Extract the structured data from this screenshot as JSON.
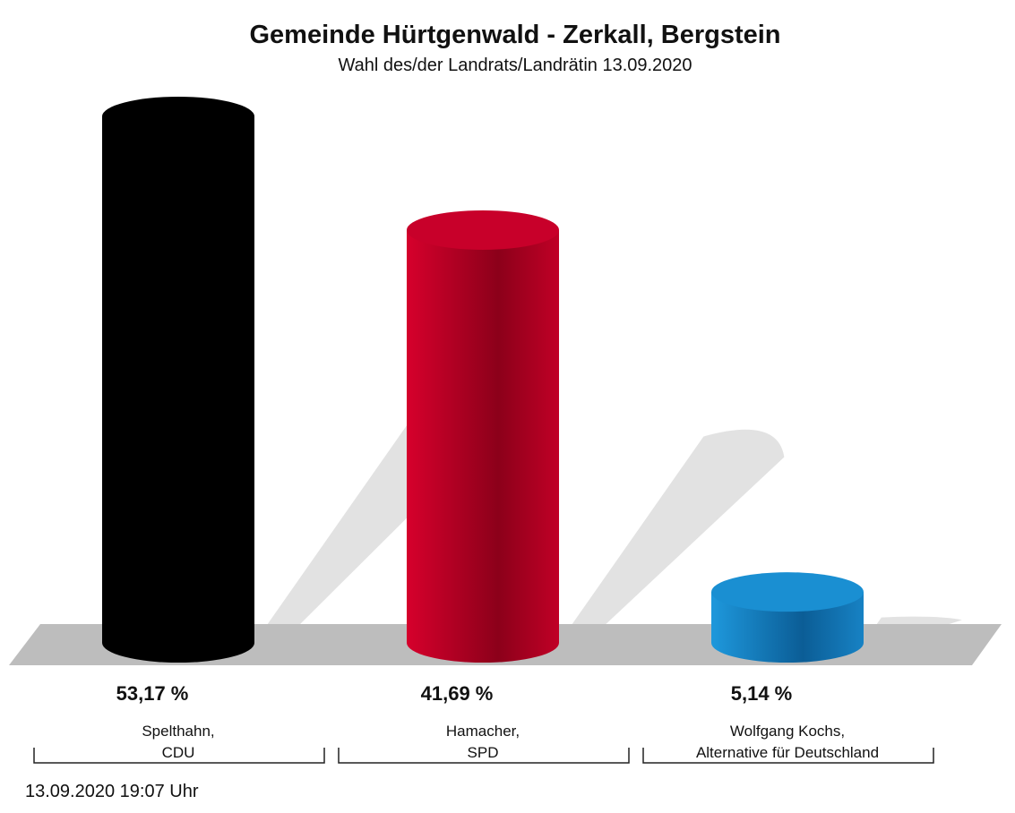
{
  "chart_data": {
    "type": "bar",
    "title": "Gemeinde Hürtgenwald - Zerkall, Bergstein",
    "subtitle": "Wahl des/der Landrats/Landrätin 13.09.2020",
    "categories": [
      [
        "Spelthahn,",
        "CDU"
      ],
      [
        "Hamacher,",
        "SPD"
      ],
      [
        "Wolfgang Kochs,",
        "Alternative für Deutschland"
      ]
    ],
    "values": [
      53.17,
      41.69,
      5.14
    ],
    "value_labels": [
      "53,17 %",
      "41,69 %",
      "5,14 %"
    ],
    "colors": [
      "#000000",
      "#c8002a",
      "#1a8fd2"
    ],
    "footnote": "13.09.2020 19:07 Uhr"
  }
}
